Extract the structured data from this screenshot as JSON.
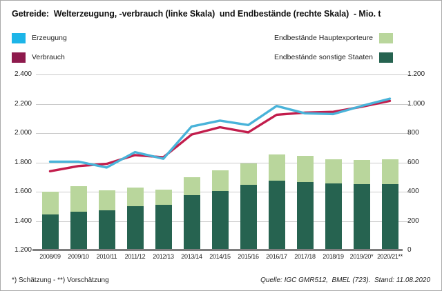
{
  "title": "Getreide:  Welterzeugung, -verbrauch (linke Skala)  und Endbestände (rechte Skala)  - Mio. t",
  "legend": {
    "left": [
      {
        "label": "Erzeugung",
        "color": "#1db5e8"
      },
      {
        "label": "Verbrauch",
        "color": "#8e1a4d"
      }
    ],
    "right": [
      {
        "label": "Endbestände Hauptexporteure",
        "color": "#b9d69c"
      },
      {
        "label": "Endbestände sonstige Staaten",
        "color": "#266350"
      }
    ]
  },
  "footer": {
    "left": "*) Schätzung - **) Vorschätzung",
    "right": "Quelle: IGC GMR512,  BMEL (723).  Stand: 11.08.2020"
  },
  "chart_data": {
    "type": "combo",
    "title": "Getreide: Welterzeugung, -verbrauch (linke Skala) und Endbestände (rechte Skala) - Mio. t",
    "categories": [
      "2008/09",
      "2009/10",
      "2010/11",
      "2011/12",
      "2012/13",
      "2013/14",
      "2014/15",
      "2015/16",
      "2016/17",
      "2017/18",
      "2018/19",
      "2019/20*",
      "2020/21**"
    ],
    "series": [
      {
        "name": "Erzeugung",
        "type": "line",
        "axis": "left",
        "color": "#49b3d9",
        "values": [
          1805,
          1805,
          1765,
          1870,
          1825,
          2045,
          2085,
          2055,
          2185,
          2135,
          2130,
          2185,
          2235
        ]
      },
      {
        "name": "Verbrauch",
        "type": "line",
        "axis": "left",
        "color": "#c21d4c",
        "values": [
          1740,
          1775,
          1790,
          1850,
          1835,
          1990,
          2040,
          2005,
          2125,
          2140,
          2145,
          2180,
          2220
        ]
      },
      {
        "name": "Endbestände sonstige Staaten",
        "type": "bar",
        "stack": "bottom",
        "axis": "right",
        "color": "#266350",
        "values": [
          245,
          262,
          272,
          300,
          312,
          376,
          404,
          448,
          474,
          466,
          455,
          454,
          452
        ]
      },
      {
        "name": "Endbestände Hauptexporteure",
        "type": "bar",
        "stack": "top",
        "axis": "right",
        "color": "#b9d69c",
        "values": [
          153,
          177,
          138,
          129,
          103,
          125,
          144,
          145,
          180,
          179,
          164,
          161,
          170
        ]
      }
    ],
    "left_axis": {
      "min": 1200,
      "max": 2400,
      "step": 200,
      "tick_labels_top_to_bottom": [
        "2.400",
        "2.200",
        "2.000",
        "1.800",
        "1.600",
        "1.400",
        "1.200"
      ]
    },
    "right_axis": {
      "min": 0,
      "max": 1200,
      "step": 200,
      "tick_labels_top_to_bottom": [
        "1.200",
        "1.000",
        "800",
        "600",
        "400",
        "200",
        "0"
      ]
    },
    "unit": "Mio. t",
    "grid": true,
    "legend_position": "top"
  }
}
